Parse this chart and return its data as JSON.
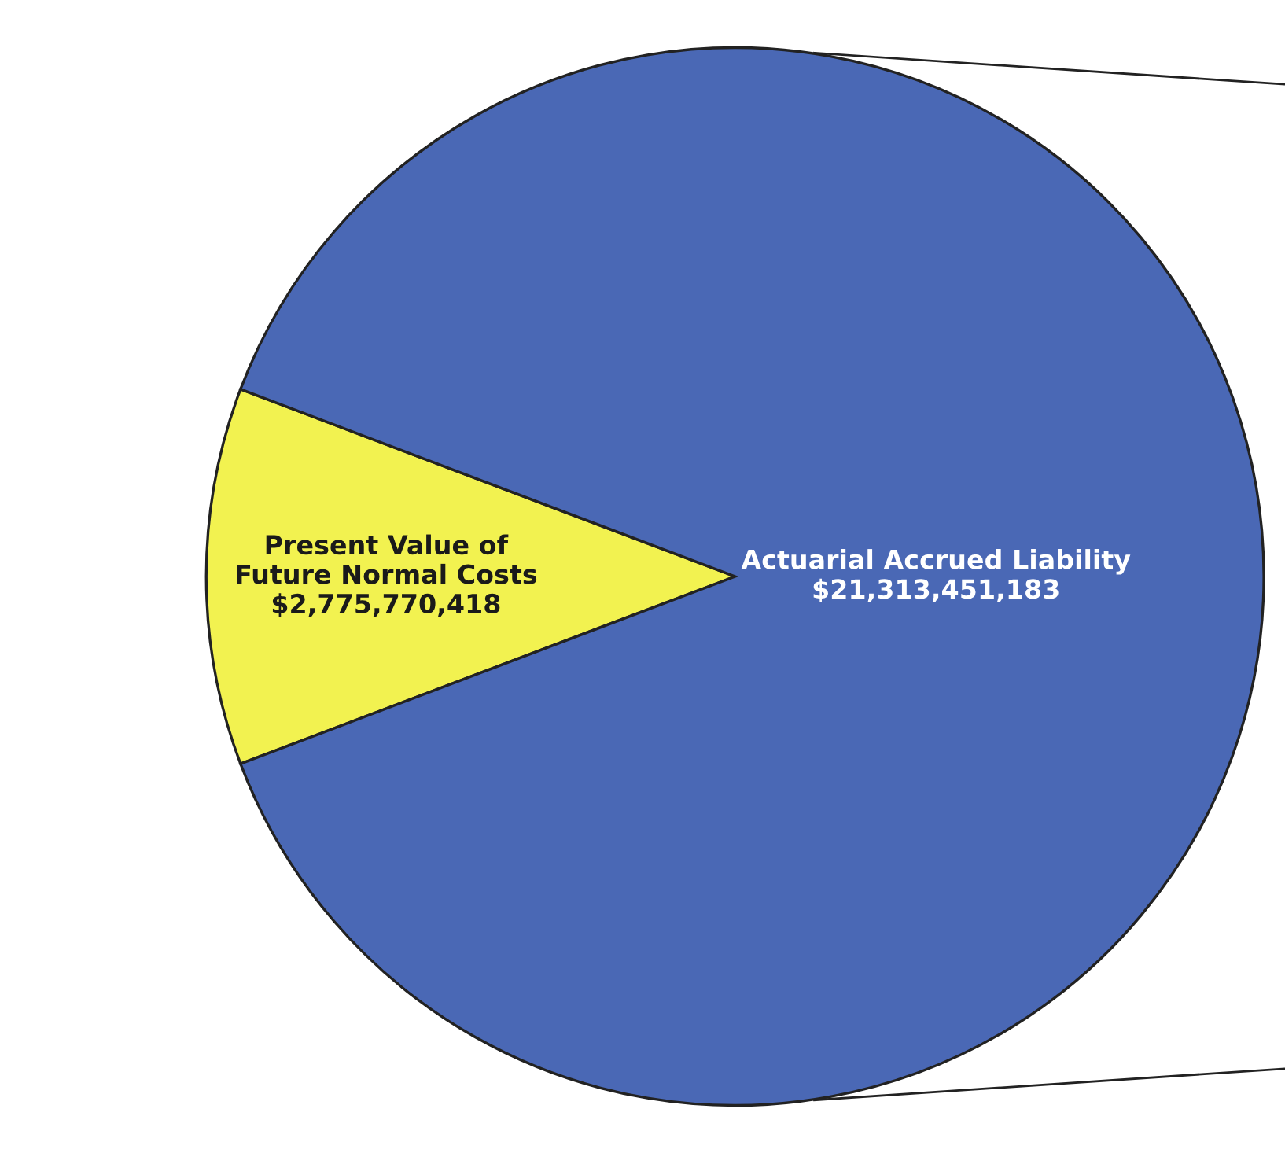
{
  "chart_data": {
    "type": "pie",
    "categories": [
      "Present Value of\nFuture Normal Costs",
      "Actuarial Accrued Liability"
    ],
    "values": [
      2775770418,
      21313451183
    ],
    "value_labels": [
      "$2,775,770,418",
      "$21,313,451,183"
    ],
    "colors": [
      "#f2f250",
      "#4a68b5"
    ]
  }
}
